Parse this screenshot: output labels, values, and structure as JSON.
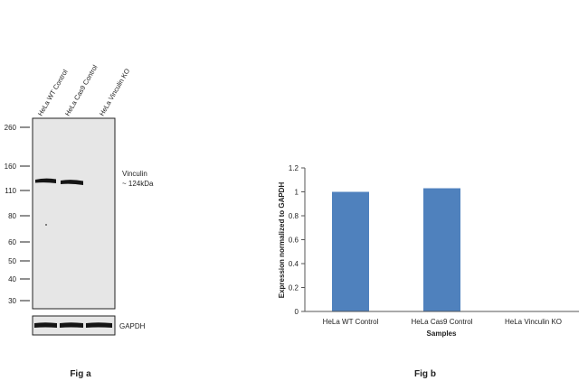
{
  "western_blot": {
    "lane_labels": [
      "HeLa WT Control",
      "HeLa Cas9 Control",
      "HeLa Vinculin KO"
    ],
    "mw_markers": [
      "260",
      "160",
      "110",
      "80",
      "60",
      "50",
      "40",
      "30"
    ],
    "band_label_line1": "Vinculin",
    "band_label_line2": "~ 124kDa",
    "loading_control_label": "GAPDH",
    "caption": "Fig a"
  },
  "chart_data": {
    "type": "bar",
    "title": "",
    "categories": [
      "HeLa WT Control",
      "HeLa Cas9 Control",
      "HeLa Vinculin KO"
    ],
    "values": [
      1.0,
      1.03,
      0.0
    ],
    "xlabel": "Samples",
    "ylabel": "Expression  normalized to GAPDH",
    "ylim": [
      0,
      1.2
    ],
    "yticks": [
      "0",
      "0.2",
      "0.4",
      "0.6",
      "0.8",
      "1",
      "1.2"
    ],
    "grid": false,
    "legend": "none",
    "bar_color": "#4f81bd",
    "caption": "Fig b"
  }
}
